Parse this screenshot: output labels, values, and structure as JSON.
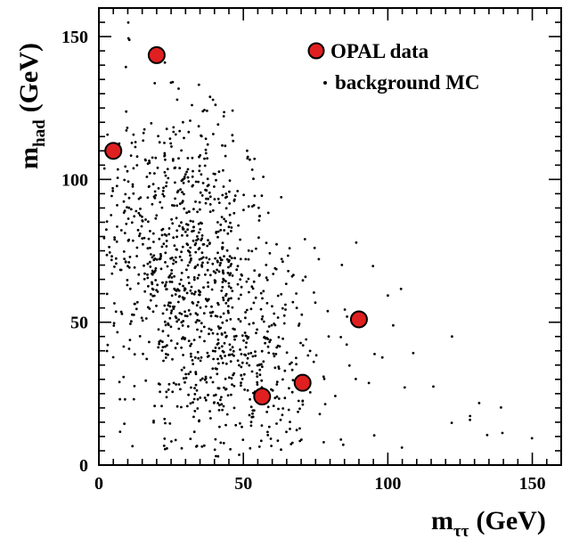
{
  "chart_data": {
    "type": "scatter",
    "x_axis": {
      "label_main": "m",
      "label_sub": "ττ",
      "label_unit": "(GeV)",
      "range": [
        0,
        160
      ],
      "ticks": [
        0,
        50,
        100,
        150
      ]
    },
    "y_axis": {
      "label_main": "m",
      "label_sub": "had",
      "label_unit": "(GeV)",
      "range": [
        0,
        160
      ],
      "ticks": [
        0,
        50,
        100,
        150
      ]
    },
    "legend": {
      "position": "top-right",
      "entries": [
        {
          "marker": "circle",
          "label": "OPAL data"
        },
        {
          "marker": "dot",
          "label": "background MC"
        }
      ]
    },
    "series": [
      {
        "name": "OPAL data",
        "color": "#e02020",
        "points": [
          {
            "x": 5,
            "y": 110
          },
          {
            "x": 20,
            "y": 143.5
          },
          {
            "x": 56.5,
            "y": 24
          },
          {
            "x": 70.5,
            "y": 28.8
          },
          {
            "x": 90,
            "y": 51
          }
        ]
      },
      {
        "name": "background MC",
        "color": "#000000",
        "count": 1200,
        "distribution": "dense cloud, mostly x 0-90 GeV and y 5-125 GeV, thinning toward high m_tautau"
      }
    ]
  }
}
